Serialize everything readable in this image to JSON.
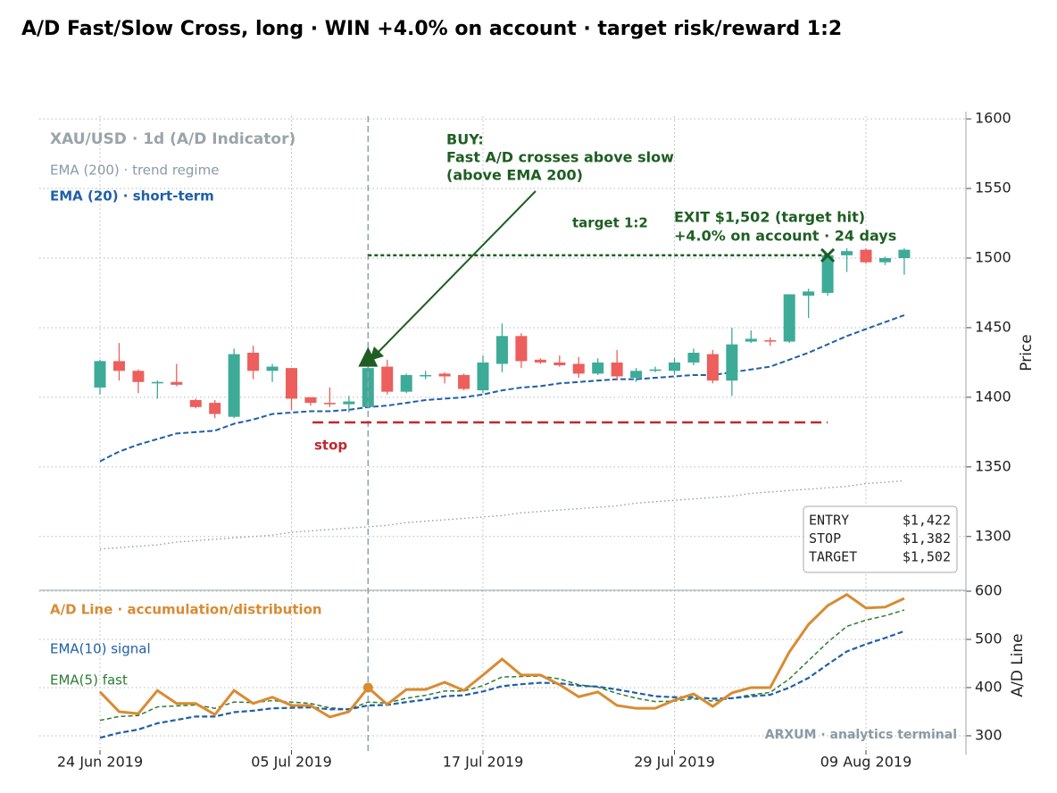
{
  "chart_data": [
    {
      "type": "candlestick",
      "title": "A/D Fast/Slow Cross, long · WIN +4.0% on account · target risk/reward 1:2",
      "subtitle": "XAU/USD · 1d (A/D Indicator)",
      "ylabel": "Price",
      "ylim": [
        1262,
        1602
      ],
      "yticks": [
        1300,
        1350,
        1400,
        1450,
        1500,
        1550,
        1600
      ],
      "grid": true,
      "up_color": "#3dab98",
      "down_color": "#ec5f5c",
      "open": [
        1407,
        1426,
        1419,
        1410,
        1411,
        1398,
        1396,
        1386,
        1432,
        1419,
        1421,
        1400,
        1396,
        1395,
        1393,
        1422,
        1404,
        1415,
        1417,
        1416,
        1405,
        1424,
        1444,
        1427,
        1425,
        1424,
        1417,
        1425,
        1414,
        1419,
        1419,
        1425,
        1431,
        1412,
        1440,
        1441,
        1440,
        1473,
        1475,
        1502,
        1506,
        1497,
        1500
      ],
      "high": [
        1427,
        1439,
        1420,
        1412,
        1424,
        1399,
        1398,
        1435,
        1437,
        1424,
        1421,
        1400,
        1407,
        1401,
        1422,
        1427,
        1417,
        1419,
        1418,
        1417,
        1430,
        1453,
        1446,
        1428,
        1430,
        1429,
        1428,
        1434,
        1421,
        1422,
        1428,
        1435,
        1434,
        1450,
        1448,
        1443,
        1474,
        1478,
        1503,
        1507,
        1507,
        1501,
        1507
      ],
      "low": [
        1402,
        1412,
        1403,
        1399,
        1408,
        1392,
        1385,
        1385,
        1413,
        1411,
        1391,
        1394,
        1393,
        1389,
        1392,
        1402,
        1403,
        1413,
        1410,
        1405,
        1403,
        1418,
        1421,
        1424,
        1422,
        1414,
        1416,
        1412,
        1411,
        1418,
        1416,
        1423,
        1410,
        1401,
        1439,
        1437,
        1439,
        1457,
        1473,
        1490,
        1496,
        1495,
        1488
      ],
      "close": [
        1426,
        1419,
        1411,
        1411,
        1409,
        1393,
        1388,
        1431,
        1419,
        1422,
        1399,
        1396,
        1395,
        1397,
        1421,
        1404,
        1416,
        1416,
        1415,
        1406,
        1425,
        1444,
        1426,
        1425,
        1423,
        1417,
        1425,
        1415,
        1419,
        1420,
        1425,
        1432,
        1412,
        1438,
        1442,
        1440,
        1474,
        1476,
        1502,
        1505,
        1497,
        1500,
        1506
      ],
      "series": [
        {
          "name": "EMA (200) · trend regime",
          "color": "#8a9aa6",
          "values": [
            1291,
            1292,
            1293,
            1294,
            1296,
            1297,
            1298,
            1299,
            1300,
            1301,
            1303,
            1304,
            1305,
            1306,
            1307,
            1308,
            1310,
            1311,
            1312,
            1313,
            1314,
            1315,
            1317,
            1318,
            1319,
            1320,
            1321,
            1322,
            1324,
            1325,
            1326,
            1327,
            1328,
            1329,
            1331,
            1332,
            1333,
            1334,
            1335,
            1336,
            1338,
            1339,
            1340
          ]
        },
        {
          "name": "EMA (20) · short-term",
          "color": "#1f5fa8",
          "values": [
            1354,
            1361,
            1366,
            1370,
            1374,
            1375,
            1376,
            1381,
            1384,
            1388,
            1389,
            1390,
            1390,
            1391,
            1393,
            1394,
            1396,
            1398,
            1399,
            1400,
            1402,
            1405,
            1407,
            1408,
            1410,
            1411,
            1412,
            1413,
            1413,
            1414,
            1415,
            1416,
            1416,
            1418,
            1420,
            1422,
            1427,
            1432,
            1438,
            1444,
            1449,
            1454,
            1459
          ]
        }
      ],
      "trade": {
        "entry": 1422,
        "stop": 1382,
        "target": 1502,
        "entry_index": 14,
        "exit_index": 38
      },
      "buy_text": [
        "BUY:",
        "Fast A/D crosses above slow",
        "(above EMA 200)"
      ],
      "target_label": "target 1:2",
      "exit_text": [
        "EXIT $1,502 (target hit)",
        "+4.0% on account  ·  24 days"
      ],
      "stop_label": "stop",
      "trade_box": [
        [
          "ENTRY",
          "$1,422"
        ],
        [
          "STOP",
          "$1,382"
        ],
        [
          "TARGET",
          "$1,502"
        ]
      ],
      "annotation_color": "#1e5e22",
      "stop_color": "#c0282d"
    },
    {
      "type": "line",
      "ylabel": "A/D Line",
      "ylim": [
        261,
        600
      ],
      "yticks": [
        300,
        400,
        500,
        600
      ],
      "grid": true,
      "categories": [
        "24 Jun 2019",
        null,
        null,
        null,
        null,
        null,
        null,
        null,
        null,
        null,
        "05 Jul 2019",
        null,
        null,
        null,
        null,
        null,
        null,
        null,
        null,
        null,
        "17 Jul 2019",
        null,
        null,
        null,
        null,
        null,
        null,
        null,
        null,
        null,
        "29 Jul 2019",
        null,
        null,
        null,
        null,
        null,
        null,
        null,
        null,
        null,
        "09 Aug 2019",
        null,
        null
      ],
      "series": [
        {
          "name": "A/D Line · accumulation/distribution",
          "color": "#d98b32",
          "values": [
            391,
            350,
            346,
            394,
            367,
            367,
            344,
            394,
            367,
            380,
            363,
            363,
            339,
            350,
            400,
            365,
            396,
            396,
            411,
            394,
            426,
            459,
            426,
            426,
            406,
            381,
            391,
            363,
            357,
            357,
            374,
            387,
            361,
            389,
            400,
            400,
            474,
            531,
            570,
            593,
            565,
            567,
            585
          ]
        },
        {
          "name": "EMA(10) signal",
          "color": "#1f5fa8",
          "values": [
            296,
            306,
            313,
            326,
            333,
            340,
            340,
            349,
            352,
            357,
            358,
            359,
            355,
            355,
            363,
            364,
            370,
            375,
            382,
            384,
            392,
            403,
            407,
            410,
            409,
            404,
            402,
            396,
            389,
            382,
            380,
            380,
            377,
            378,
            382,
            385,
            400,
            420,
            448,
            475,
            490,
            503,
            517
          ]
        },
        {
          "name": "EMA(5) fast",
          "color": "#2e7d32",
          "values": [
            332,
            340,
            342,
            360,
            362,
            364,
            357,
            370,
            369,
            373,
            370,
            367,
            358,
            355,
            370,
            368,
            378,
            384,
            393,
            393,
            404,
            422,
            423,
            424,
            418,
            406,
            401,
            388,
            378,
            371,
            372,
            377,
            372,
            378,
            385,
            390,
            418,
            456,
            494,
            527,
            540,
            549,
            561
          ]
        }
      ],
      "watermark": "ARXUM · analytics terminal"
    }
  ]
}
